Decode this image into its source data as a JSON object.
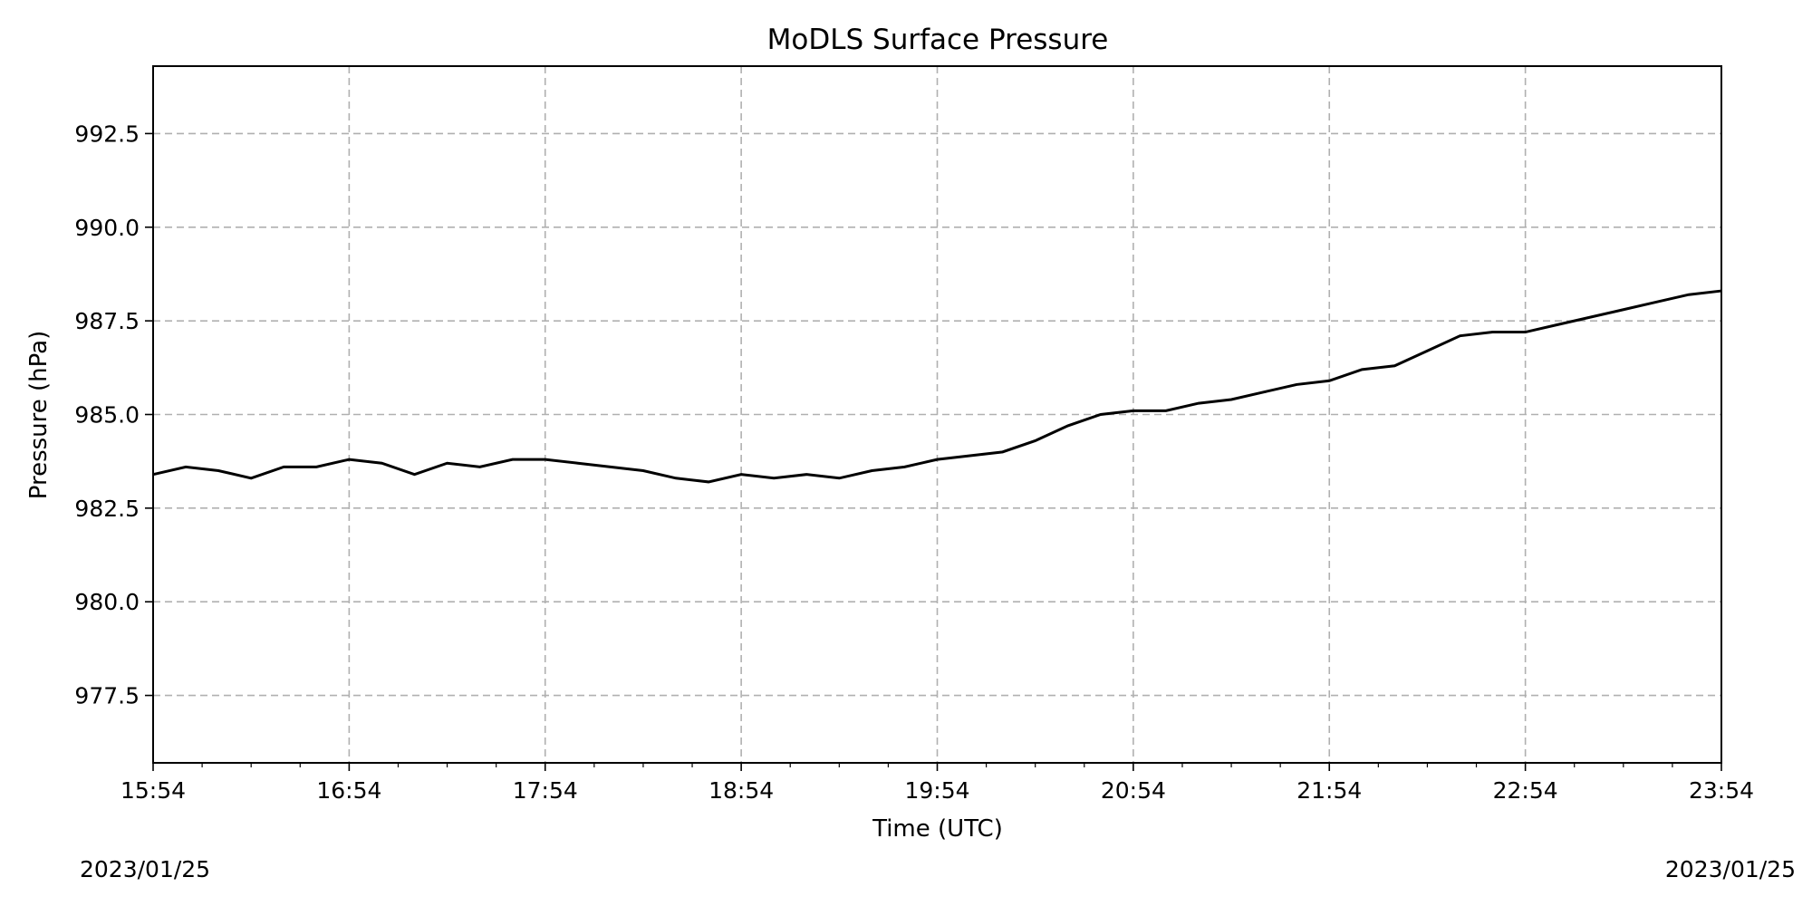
{
  "chart_data": {
    "type": "line",
    "title": "MoDLS Surface Pressure",
    "xlabel": "Time (UTC)",
    "ylabel": "Pressure (hPa)",
    "date_start": "2023/01/25",
    "date_end": "2023/01/25",
    "grid": true,
    "grid_style": "dashed",
    "line_color": "#000000",
    "grid_color": "#b0b0b0",
    "xlim": [
      "15:54",
      "23:54"
    ],
    "ylim": [
      975.7,
      994.3
    ],
    "xticks": [
      "15:54",
      "16:54",
      "17:54",
      "18:54",
      "19:54",
      "20:54",
      "21:54",
      "22:54",
      "23:54"
    ],
    "yticks": [
      977.5,
      980.0,
      982.5,
      985.0,
      987.5,
      990.0,
      992.5
    ],
    "ytick_labels": [
      "977.5",
      "980.0",
      "982.5",
      "985.0",
      "987.5",
      "990.0",
      "992.5"
    ],
    "series": [
      {
        "x": [
          "15:54",
          "16:04",
          "16:14",
          "16:24",
          "16:34",
          "16:44",
          "16:54",
          "17:04",
          "17:14",
          "17:24",
          "17:34",
          "17:44",
          "17:54",
          "18:04",
          "18:14",
          "18:24",
          "18:34",
          "18:44",
          "18:54",
          "19:04",
          "19:14",
          "19:24",
          "19:34",
          "19:44",
          "19:54",
          "20:04",
          "20:14",
          "20:24",
          "20:34",
          "20:44",
          "20:54",
          "21:04",
          "21:14",
          "21:24",
          "21:34",
          "21:44",
          "21:54",
          "22:04",
          "22:14",
          "22:24",
          "22:34",
          "22:44",
          "22:54",
          "23:04",
          "23:14",
          "23:24",
          "23:34",
          "23:44",
          "23:54"
        ],
        "values": [
          983.4,
          983.6,
          983.5,
          983.3,
          983.6,
          983.6,
          983.8,
          983.7,
          983.4,
          983.7,
          983.6,
          983.8,
          983.8,
          983.7,
          983.6,
          983.5,
          983.3,
          983.2,
          983.4,
          983.3,
          983.4,
          983.3,
          983.5,
          983.6,
          983.8,
          983.9,
          984.0,
          984.3,
          984.7,
          985.0,
          985.1,
          985.1,
          985.3,
          985.4,
          985.6,
          985.8,
          985.9,
          986.2,
          986.3,
          986.7,
          987.1,
          987.2,
          987.2,
          987.4,
          987.6,
          987.8,
          988.0,
          988.2,
          988.3
        ]
      }
    ]
  }
}
